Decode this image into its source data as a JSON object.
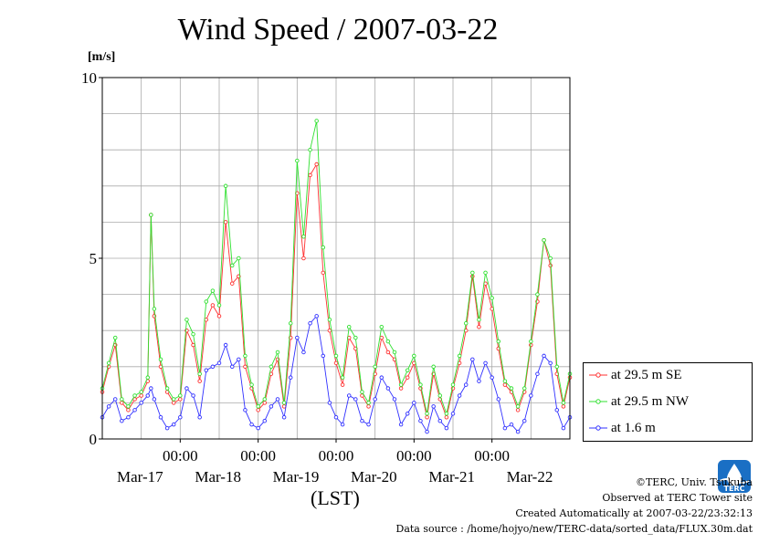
{
  "header": {
    "title": "Wind Speed / 2007-03-22",
    "unit": "[m/s]"
  },
  "footer": {
    "copyright": "©TERC, Univ. Tsukuba",
    "observed": "Observed at TERC Tower site",
    "created": "Created Automatically at 2007-03-22/23:32:13",
    "source": "Data source : /home/hojyo/new/TERC-data/sorted_data/FLUX.30m.dat"
  },
  "logo": {
    "icon": "terc-logo-icon",
    "text": "TERC",
    "color": "#1a6fc4"
  },
  "chart_data": {
    "type": "line",
    "title": "Wind Speed / 2007-03-22",
    "ylabel": "[m/s]",
    "xlabel": "(LST)",
    "ylim": [
      0,
      10
    ],
    "yticks": [
      "0",
      "5",
      "10"
    ],
    "xlim_hours": [
      0,
      144
    ],
    "x_ticks": [
      {
        "hour": 24,
        "time": "00:00",
        "date": "Mar-17"
      },
      {
        "hour": 48,
        "time": "00:00",
        "date": "Mar-18"
      },
      {
        "hour": 72,
        "time": "00:00",
        "date": "Mar-19"
      },
      {
        "hour": 96,
        "time": "00:00",
        "date": "Mar-20"
      },
      {
        "hour": 120,
        "time": "00:00",
        "date": "Mar-21"
      },
      {
        "hour": 144,
        "time": "",
        "date": "Mar-22"
      }
    ],
    "grid": true,
    "legend_position": "right",
    "series": [
      {
        "name": "at 29.5 m SE",
        "color": "#ff3030",
        "x": [
          0,
          2,
          4,
          6,
          8,
          10,
          12,
          14,
          15,
          16,
          18,
          20,
          22,
          24,
          26,
          28,
          30,
          32,
          34,
          36,
          38,
          40,
          42,
          44,
          46,
          48,
          50,
          52,
          54,
          56,
          58,
          60,
          62,
          64,
          66,
          68,
          70,
          72,
          74,
          76,
          78,
          80,
          82,
          84,
          86,
          88,
          90,
          92,
          94,
          96,
          98,
          100,
          102,
          104,
          106,
          108,
          110,
          112,
          114,
          116,
          118,
          120,
          122,
          124,
          126,
          128,
          130,
          132,
          134,
          136,
          138,
          140,
          142,
          144
        ],
        "values": [
          1.3,
          2.0,
          2.6,
          1.0,
          0.8,
          1.1,
          1.2,
          1.6,
          6.2,
          3.4,
          2.0,
          1.3,
          1.0,
          1.1,
          3.0,
          2.6,
          1.6,
          3.3,
          3.7,
          3.4,
          6.0,
          4.3,
          4.5,
          2.0,
          1.4,
          0.8,
          1.0,
          1.8,
          2.2,
          0.9,
          2.8,
          6.8,
          5.0,
          7.3,
          7.6,
          4.6,
          3.0,
          2.1,
          1.5,
          2.8,
          2.5,
          1.2,
          0.9,
          1.8,
          2.8,
          2.4,
          2.2,
          1.4,
          1.7,
          2.1,
          1.4,
          0.6,
          1.8,
          1.1,
          0.6,
          1.4,
          2.1,
          3.0,
          4.5,
          3.1,
          4.3,
          3.6,
          2.5,
          1.5,
          1.3,
          0.8,
          1.3,
          2.6,
          3.8,
          5.5,
          4.8,
          1.8,
          0.9,
          1.7
        ]
      },
      {
        "name": "at 29.5 m NW",
        "color": "#30e030",
        "x": [
          0,
          2,
          4,
          6,
          8,
          10,
          12,
          14,
          15,
          16,
          18,
          20,
          22,
          24,
          26,
          28,
          30,
          32,
          34,
          36,
          38,
          40,
          42,
          44,
          46,
          48,
          50,
          52,
          54,
          56,
          58,
          60,
          62,
          64,
          66,
          68,
          70,
          72,
          74,
          76,
          78,
          80,
          82,
          84,
          86,
          88,
          90,
          92,
          94,
          96,
          98,
          100,
          102,
          104,
          106,
          108,
          110,
          112,
          114,
          116,
          118,
          120,
          122,
          124,
          126,
          128,
          130,
          132,
          134,
          136,
          138,
          140,
          142,
          144
        ],
        "values": [
          1.4,
          2.1,
          2.8,
          1.1,
          0.9,
          1.2,
          1.3,
          1.7,
          6.2,
          3.6,
          2.2,
          1.4,
          1.1,
          1.2,
          3.3,
          2.9,
          1.8,
          3.8,
          4.1,
          3.7,
          7.0,
          4.8,
          5.0,
          2.3,
          1.5,
          0.9,
          1.1,
          2.0,
          2.4,
          1.0,
          3.2,
          7.7,
          5.6,
          8.0,
          8.8,
          5.3,
          3.3,
          2.3,
          1.7,
          3.1,
          2.8,
          1.3,
          1.0,
          2.0,
          3.1,
          2.7,
          2.4,
          1.5,
          1.9,
          2.3,
          1.5,
          0.7,
          2.0,
          1.2,
          0.7,
          1.5,
          2.3,
          3.2,
          4.6,
          3.3,
          4.6,
          3.9,
          2.7,
          1.6,
          1.4,
          0.9,
          1.4,
          2.7,
          4.0,
          5.5,
          5.0,
          2.0,
          1.0,
          1.8
        ]
      },
      {
        "name": "at 1.6 m",
        "color": "#3030ff",
        "x": [
          0,
          2,
          4,
          6,
          8,
          10,
          12,
          14,
          15,
          16,
          18,
          20,
          22,
          24,
          26,
          28,
          30,
          32,
          34,
          36,
          38,
          40,
          42,
          44,
          46,
          48,
          50,
          52,
          54,
          56,
          58,
          60,
          62,
          64,
          66,
          68,
          70,
          72,
          74,
          76,
          78,
          80,
          82,
          84,
          86,
          88,
          90,
          92,
          94,
          96,
          98,
          100,
          102,
          104,
          106,
          108,
          110,
          112,
          114,
          116,
          118,
          120,
          122,
          124,
          126,
          128,
          130,
          132,
          134,
          136,
          138,
          140,
          142,
          144
        ],
        "values": [
          0.6,
          0.9,
          1.1,
          0.5,
          0.6,
          0.8,
          1.0,
          1.2,
          1.4,
          1.1,
          0.6,
          0.3,
          0.4,
          0.6,
          1.4,
          1.2,
          0.6,
          1.9,
          2.0,
          2.1,
          2.6,
          2.0,
          2.2,
          0.8,
          0.4,
          0.3,
          0.5,
          0.9,
          1.1,
          0.6,
          1.7,
          2.8,
          2.4,
          3.2,
          3.4,
          2.3,
          1.0,
          0.6,
          0.4,
          1.2,
          1.1,
          0.5,
          0.4,
          1.1,
          1.7,
          1.4,
          1.1,
          0.4,
          0.7,
          1.0,
          0.5,
          0.2,
          0.9,
          0.5,
          0.3,
          0.7,
          1.2,
          1.5,
          2.2,
          1.6,
          2.1,
          1.7,
          1.1,
          0.3,
          0.4,
          0.2,
          0.5,
          1.2,
          1.8,
          2.3,
          2.1,
          0.8,
          0.3,
          0.6
        ]
      }
    ]
  }
}
